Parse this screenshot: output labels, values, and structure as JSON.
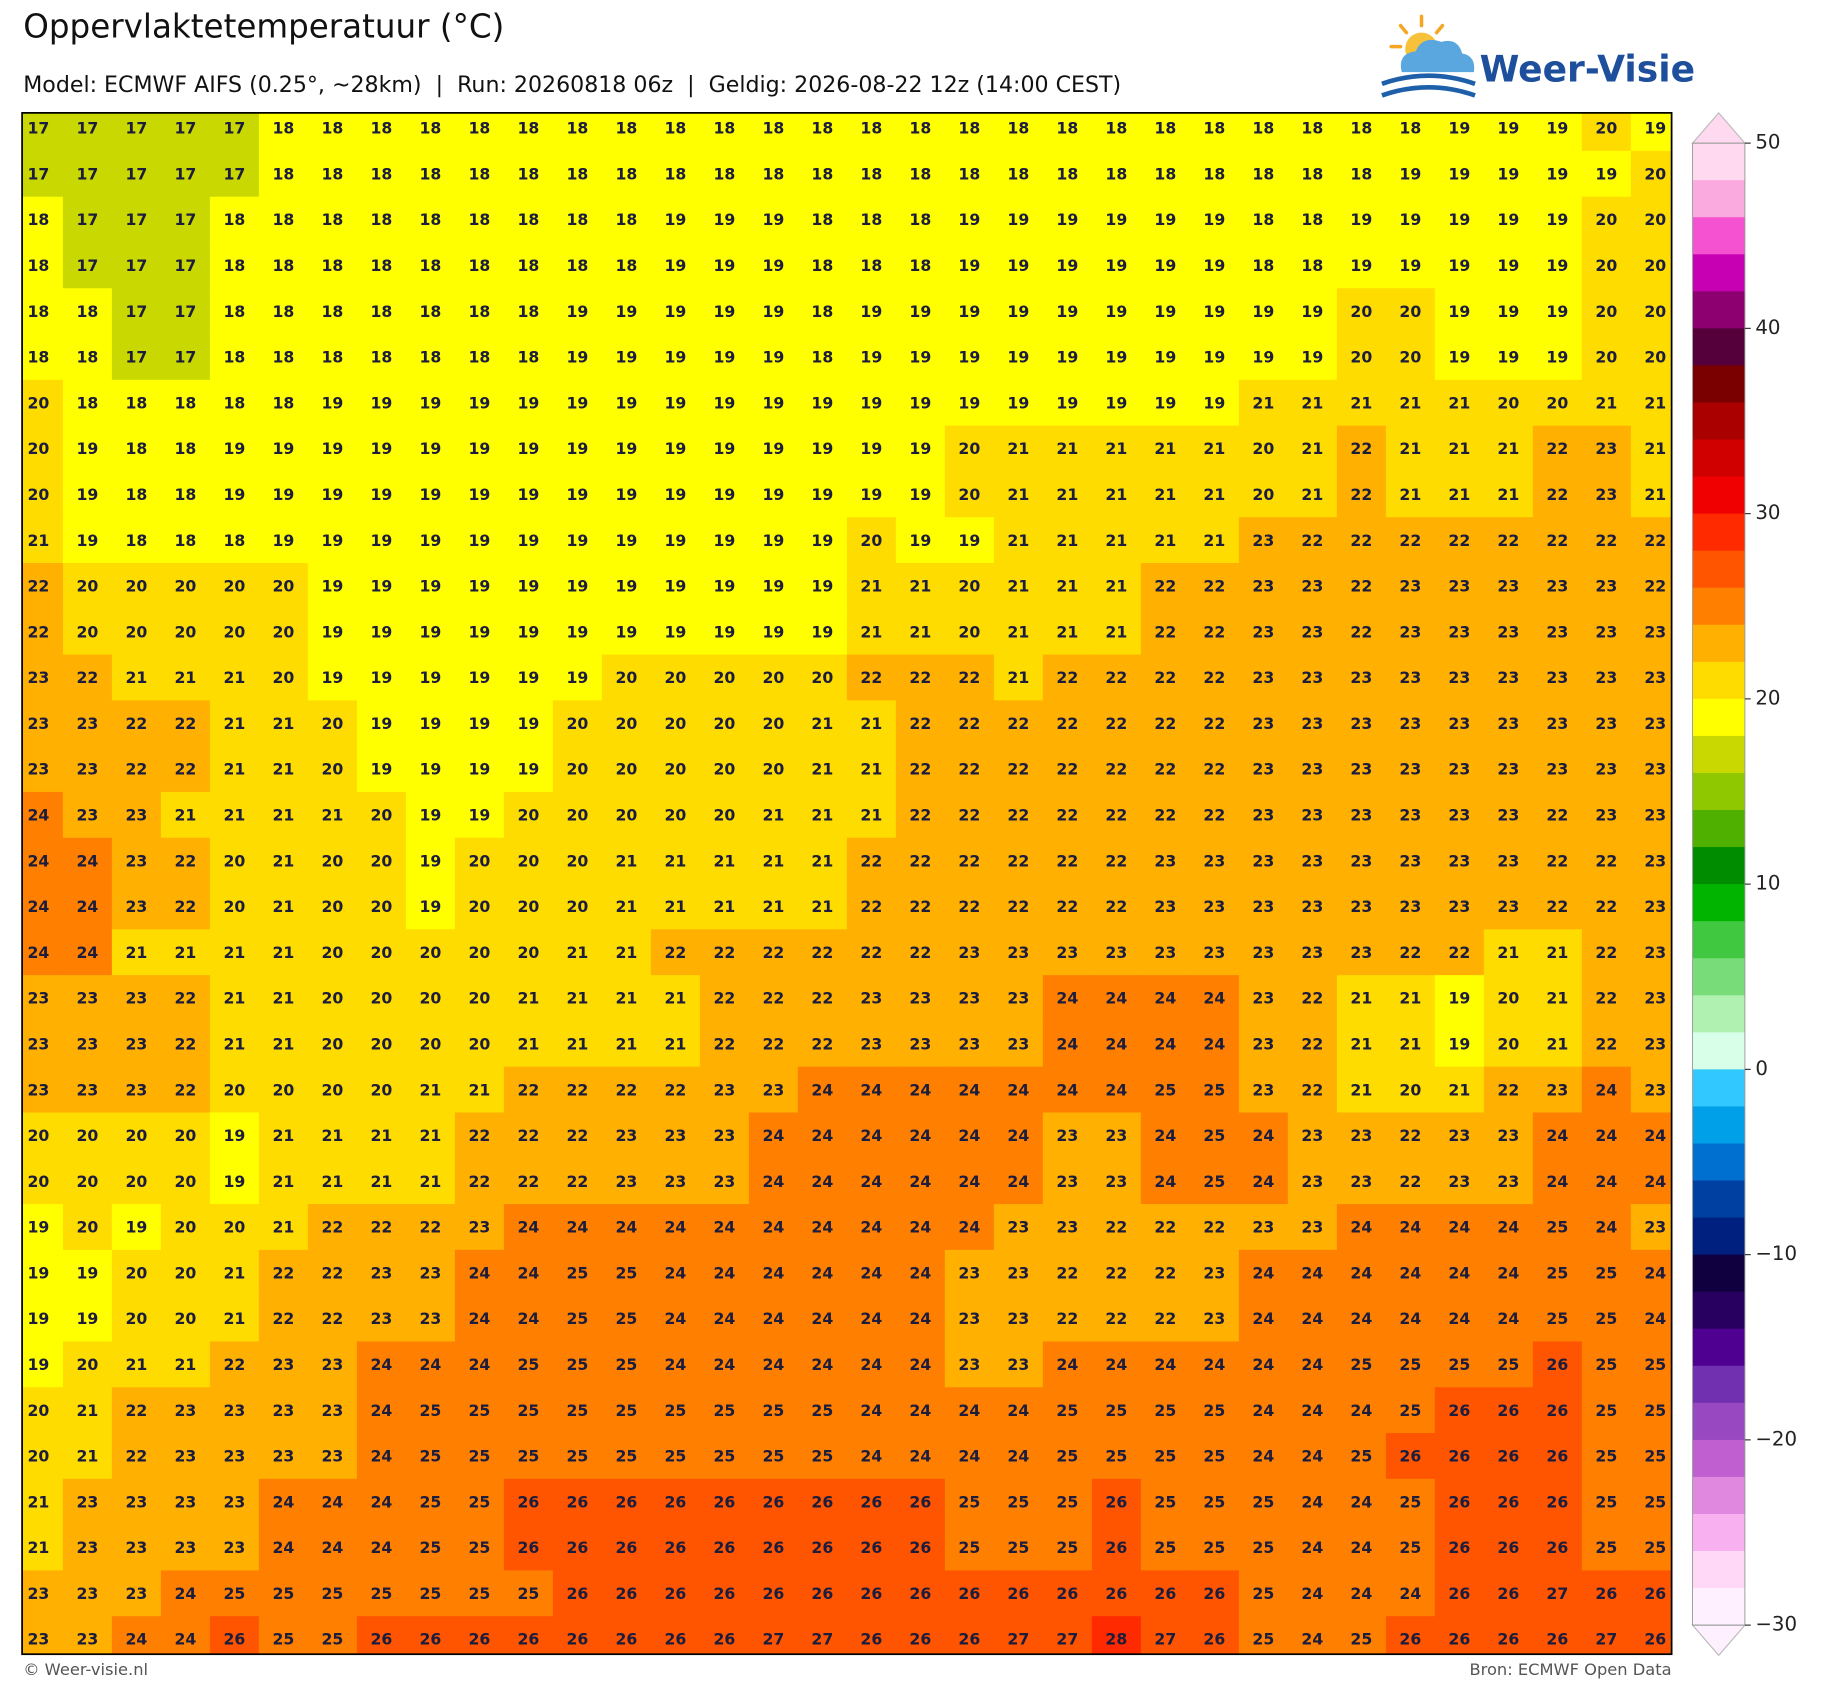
{
  "header": {
    "title": "Oppervlaktetemperatuur (°C)",
    "subtitle": "Model: ECMWF AIFS (0.25°, ~28km)  |  Run: 20260818 06z  |  Geldig: 2026-08-22 12z (14:00 CEST)"
  },
  "logo": {
    "text": "Weer-Visie"
  },
  "map": {
    "rows": [
      [
        17,
        17,
        17,
        17,
        17,
        18,
        18,
        18,
        18,
        18,
        18,
        18,
        18,
        18,
        18,
        18,
        18,
        18,
        18,
        18,
        18,
        18,
        18,
        18,
        18,
        18,
        18,
        18,
        18,
        19,
        19,
        19,
        20,
        19
      ],
      [
        17,
        17,
        17,
        17,
        17,
        18,
        18,
        18,
        18,
        18,
        18,
        18,
        18,
        18,
        18,
        18,
        18,
        18,
        18,
        18,
        18,
        18,
        18,
        18,
        18,
        18,
        18,
        18,
        19,
        19,
        19,
        19,
        19,
        20
      ],
      [
        18,
        17,
        17,
        17,
        18,
        18,
        18,
        18,
        18,
        18,
        18,
        18,
        18,
        19,
        19,
        19,
        18,
        18,
        18,
        19,
        19,
        19,
        19,
        19,
        19,
        18,
        18,
        19,
        19,
        19,
        19,
        19,
        20,
        20
      ],
      [
        18,
        17,
        17,
        17,
        18,
        18,
        18,
        18,
        18,
        18,
        18,
        18,
        18,
        19,
        19,
        19,
        18,
        18,
        18,
        19,
        19,
        19,
        19,
        19,
        19,
        18,
        18,
        19,
        19,
        19,
        19,
        19,
        20,
        20
      ],
      [
        18,
        18,
        17,
        17,
        18,
        18,
        18,
        18,
        18,
        18,
        18,
        19,
        19,
        19,
        19,
        19,
        18,
        19,
        19,
        19,
        19,
        19,
        19,
        19,
        19,
        19,
        19,
        20,
        20,
        19,
        19,
        19,
        20,
        20
      ],
      [
        18,
        18,
        17,
        17,
        18,
        18,
        18,
        18,
        18,
        18,
        18,
        19,
        19,
        19,
        19,
        19,
        18,
        19,
        19,
        19,
        19,
        19,
        19,
        19,
        19,
        19,
        19,
        20,
        20,
        19,
        19,
        19,
        20,
        20
      ],
      [
        20,
        18,
        18,
        18,
        18,
        18,
        19,
        19,
        19,
        19,
        19,
        19,
        19,
        19,
        19,
        19,
        19,
        19,
        19,
        19,
        19,
        19,
        19,
        19,
        19,
        21,
        21,
        21,
        21,
        21,
        20,
        20,
        21,
        21
      ],
      [
        20,
        19,
        18,
        18,
        19,
        19,
        19,
        19,
        19,
        19,
        19,
        19,
        19,
        19,
        19,
        19,
        19,
        19,
        19,
        20,
        21,
        21,
        21,
        21,
        21,
        20,
        21,
        22,
        21,
        21,
        21,
        22,
        23,
        21
      ],
      [
        20,
        19,
        18,
        18,
        19,
        19,
        19,
        19,
        19,
        19,
        19,
        19,
        19,
        19,
        19,
        19,
        19,
        19,
        19,
        20,
        21,
        21,
        21,
        21,
        21,
        20,
        21,
        22,
        21,
        21,
        21,
        22,
        23,
        21
      ],
      [
        21,
        19,
        18,
        18,
        18,
        19,
        19,
        19,
        19,
        19,
        19,
        19,
        19,
        19,
        19,
        19,
        19,
        20,
        19,
        19,
        21,
        21,
        21,
        21,
        21,
        23,
        22,
        22,
        22,
        22,
        22,
        22,
        22,
        22
      ],
      [
        22,
        20,
        20,
        20,
        20,
        20,
        19,
        19,
        19,
        19,
        19,
        19,
        19,
        19,
        19,
        19,
        19,
        21,
        21,
        20,
        21,
        21,
        21,
        22,
        22,
        23,
        23,
        22,
        23,
        23,
        23,
        23,
        23,
        22
      ],
      [
        22,
        20,
        20,
        20,
        20,
        20,
        19,
        19,
        19,
        19,
        19,
        19,
        19,
        19,
        19,
        19,
        19,
        21,
        21,
        20,
        21,
        21,
        21,
        22,
        22,
        23,
        23,
        22,
        23,
        23,
        23,
        23,
        23,
        23
      ],
      [
        23,
        22,
        21,
        21,
        21,
        20,
        19,
        19,
        19,
        19,
        19,
        19,
        20,
        20,
        20,
        20,
        20,
        22,
        22,
        22,
        21,
        22,
        22,
        22,
        22,
        23,
        23,
        23,
        23,
        23,
        23,
        23,
        23,
        23
      ],
      [
        23,
        23,
        22,
        22,
        21,
        21,
        20,
        19,
        19,
        19,
        19,
        20,
        20,
        20,
        20,
        20,
        21,
        21,
        22,
        22,
        22,
        22,
        22,
        22,
        22,
        23,
        23,
        23,
        23,
        23,
        23,
        23,
        23,
        23
      ],
      [
        23,
        23,
        22,
        22,
        21,
        21,
        20,
        19,
        19,
        19,
        19,
        20,
        20,
        20,
        20,
        20,
        21,
        21,
        22,
        22,
        22,
        22,
        22,
        22,
        22,
        23,
        23,
        23,
        23,
        23,
        23,
        23,
        23,
        23
      ],
      [
        24,
        23,
        23,
        21,
        21,
        21,
        21,
        20,
        19,
        19,
        20,
        20,
        20,
        20,
        20,
        21,
        21,
        21,
        22,
        22,
        22,
        22,
        22,
        22,
        22,
        23,
        23,
        23,
        23,
        23,
        23,
        22,
        23,
        23
      ],
      [
        24,
        24,
        23,
        22,
        20,
        21,
        20,
        20,
        19,
        20,
        20,
        20,
        21,
        21,
        21,
        21,
        21,
        22,
        22,
        22,
        22,
        22,
        22,
        23,
        23,
        23,
        23,
        23,
        23,
        23,
        23,
        22,
        22,
        23
      ],
      [
        24,
        24,
        23,
        22,
        20,
        21,
        20,
        20,
        19,
        20,
        20,
        20,
        21,
        21,
        21,
        21,
        21,
        22,
        22,
        22,
        22,
        22,
        22,
        23,
        23,
        23,
        23,
        23,
        23,
        23,
        23,
        22,
        22,
        23
      ],
      [
        24,
        24,
        21,
        21,
        21,
        21,
        20,
        20,
        20,
        20,
        20,
        21,
        21,
        22,
        22,
        22,
        22,
        22,
        22,
        23,
        23,
        23,
        23,
        23,
        23,
        23,
        23,
        23,
        22,
        22,
        21,
        21,
        22,
        23
      ],
      [
        23,
        23,
        23,
        22,
        21,
        21,
        20,
        20,
        20,
        20,
        21,
        21,
        21,
        21,
        22,
        22,
        22,
        23,
        23,
        23,
        23,
        24,
        24,
        24,
        24,
        23,
        22,
        21,
        21,
        19,
        20,
        21,
        22,
        23
      ],
      [
        23,
        23,
        23,
        22,
        21,
        21,
        20,
        20,
        20,
        20,
        21,
        21,
        21,
        21,
        22,
        22,
        22,
        23,
        23,
        23,
        23,
        24,
        24,
        24,
        24,
        23,
        22,
        21,
        21,
        19,
        20,
        21,
        22,
        23
      ],
      [
        23,
        23,
        23,
        22,
        20,
        20,
        20,
        20,
        21,
        21,
        22,
        22,
        22,
        22,
        23,
        23,
        24,
        24,
        24,
        24,
        24,
        24,
        24,
        25,
        25,
        23,
        22,
        21,
        20,
        21,
        22,
        23,
        24,
        23
      ],
      [
        20,
        20,
        20,
        20,
        19,
        21,
        21,
        21,
        21,
        22,
        22,
        22,
        23,
        23,
        23,
        24,
        24,
        24,
        24,
        24,
        24,
        23,
        23,
        24,
        25,
        24,
        23,
        23,
        22,
        23,
        23,
        24,
        24,
        24
      ],
      [
        20,
        20,
        20,
        20,
        19,
        21,
        21,
        21,
        21,
        22,
        22,
        22,
        23,
        23,
        23,
        24,
        24,
        24,
        24,
        24,
        24,
        23,
        23,
        24,
        25,
        24,
        23,
        23,
        22,
        23,
        23,
        24,
        24,
        24
      ],
      [
        19,
        20,
        19,
        20,
        20,
        21,
        22,
        22,
        22,
        23,
        24,
        24,
        24,
        24,
        24,
        24,
        24,
        24,
        24,
        24,
        23,
        23,
        22,
        22,
        22,
        23,
        23,
        24,
        24,
        24,
        24,
        25,
        24,
        23
      ],
      [
        19,
        19,
        20,
        20,
        21,
        22,
        22,
        23,
        23,
        24,
        24,
        25,
        25,
        24,
        24,
        24,
        24,
        24,
        24,
        23,
        23,
        22,
        22,
        22,
        23,
        24,
        24,
        24,
        24,
        24,
        24,
        25,
        25,
        24
      ],
      [
        19,
        19,
        20,
        20,
        21,
        22,
        22,
        23,
        23,
        24,
        24,
        25,
        25,
        24,
        24,
        24,
        24,
        24,
        24,
        23,
        23,
        22,
        22,
        22,
        23,
        24,
        24,
        24,
        24,
        24,
        24,
        25,
        25,
        24
      ],
      [
        19,
        20,
        21,
        21,
        22,
        23,
        23,
        24,
        24,
        24,
        25,
        25,
        25,
        24,
        24,
        24,
        24,
        24,
        24,
        23,
        23,
        24,
        24,
        24,
        24,
        24,
        24,
        25,
        25,
        25,
        25,
        26,
        25,
        25
      ],
      [
        20,
        21,
        22,
        23,
        23,
        23,
        23,
        24,
        25,
        25,
        25,
        25,
        25,
        25,
        25,
        25,
        25,
        24,
        24,
        24,
        24,
        25,
        25,
        25,
        25,
        24,
        24,
        24,
        25,
        26,
        26,
        26,
        25,
        25
      ],
      [
        20,
        21,
        22,
        23,
        23,
        23,
        23,
        24,
        25,
        25,
        25,
        25,
        25,
        25,
        25,
        25,
        25,
        24,
        24,
        24,
        24,
        25,
        25,
        25,
        25,
        24,
        24,
        25,
        26,
        26,
        26,
        26,
        25,
        25
      ],
      [
        21,
        23,
        23,
        23,
        23,
        24,
        24,
        24,
        25,
        25,
        26,
        26,
        26,
        26,
        26,
        26,
        26,
        26,
        26,
        25,
        25,
        25,
        26,
        25,
        25,
        25,
        24,
        24,
        25,
        26,
        26,
        26,
        25,
        25
      ],
      [
        21,
        23,
        23,
        23,
        23,
        24,
        24,
        24,
        25,
        25,
        26,
        26,
        26,
        26,
        26,
        26,
        26,
        26,
        26,
        25,
        25,
        25,
        26,
        25,
        25,
        25,
        24,
        24,
        25,
        26,
        26,
        26,
        25,
        25
      ],
      [
        23,
        23,
        23,
        24,
        25,
        25,
        25,
        25,
        25,
        25,
        25,
        26,
        26,
        26,
        26,
        26,
        26,
        26,
        26,
        26,
        26,
        26,
        26,
        26,
        26,
        25,
        24,
        24,
        24,
        26,
        26,
        27,
        26,
        26
      ],
      [
        23,
        23,
        24,
        24,
        26,
        25,
        25,
        26,
        26,
        26,
        26,
        26,
        26,
        26,
        26,
        27,
        27,
        26,
        26,
        26,
        27,
        27,
        28,
        27,
        26,
        25,
        24,
        25,
        26,
        26,
        26,
        26,
        27,
        26
      ]
    ]
  },
  "colorbar": {
    "lim": [
      -30,
      50
    ],
    "ticks": [
      50,
      40,
      30,
      20,
      10,
      0,
      {
        "value": -10,
        "label": "−10"
      },
      {
        "value": -20,
        "label": "−20"
      },
      {
        "value": -30,
        "label": "−30"
      }
    ],
    "colors": [
      "#ffd9f0",
      "#fbaadf",
      "#f552d2",
      "#c800b4",
      "#8c0070",
      "#55003a",
      "#7a0000",
      "#aa0000",
      "#d00000",
      "#f00000",
      "#ff2a00",
      "#ff5500",
      "#ff8000",
      "#ffb000",
      "#ffdc00",
      "#ffff00",
      "#c8d800",
      "#90c800",
      "#50b000",
      "#008c00",
      "#00b400",
      "#40c840",
      "#78dc78",
      "#b0f0b0",
      "#d8ffe8",
      "#30c8ff",
      "#00a0e8",
      "#0070d0",
      "#0040a0",
      "#002080",
      "#100040",
      "#280060",
      "#500090",
      "#7030b0",
      "#9848c0",
      "#c060d0",
      "#e088e0",
      "#f8b0f0",
      "#ffd8f8",
      "#fff0ff"
    ]
  },
  "footer": {
    "left": "© Weer-visie.nl",
    "right": "Bron: ECMWF Open Data"
  }
}
